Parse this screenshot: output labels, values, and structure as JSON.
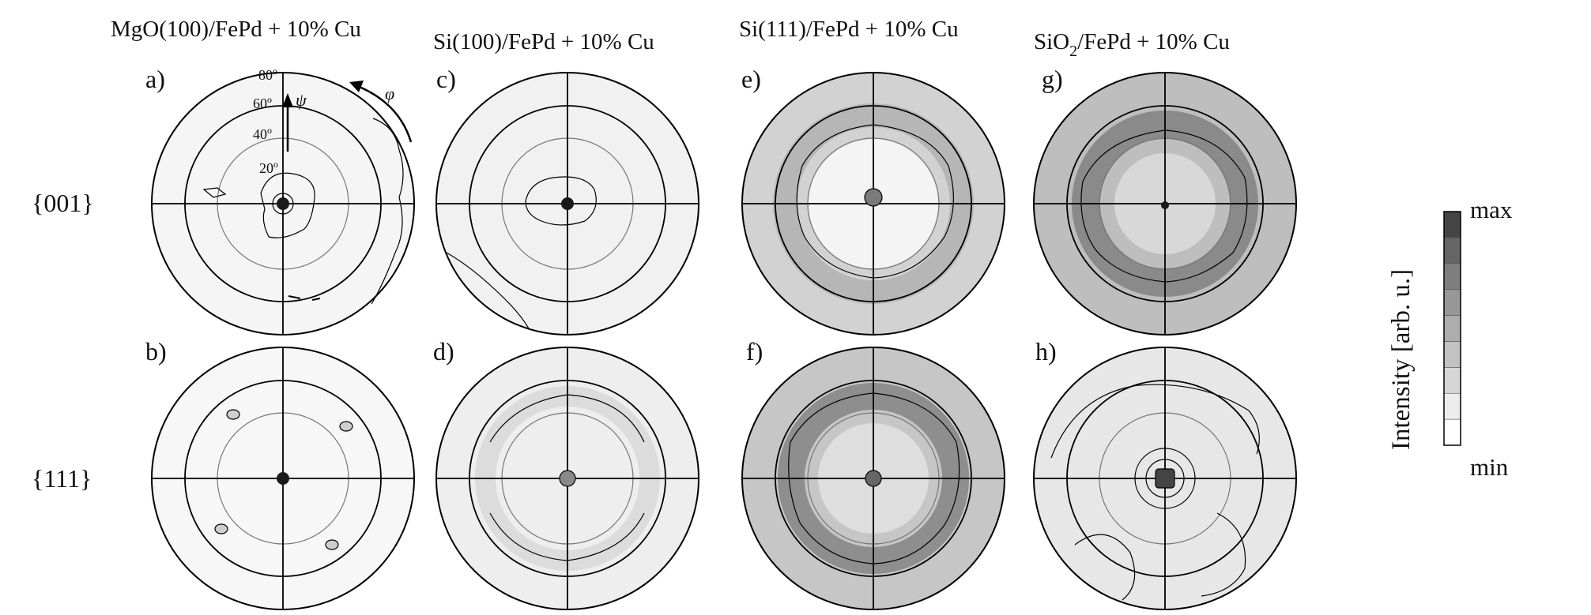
{
  "columns": [
    {
      "title_pre": "MgO(100)/FePd + 10% Cu",
      "title_sub": "",
      "title_post": ""
    },
    {
      "title_pre": "Si(100)/FePd + 10% Cu",
      "title_sub": "",
      "title_post": ""
    },
    {
      "title_pre": "Si(111)/FePd + 10% Cu",
      "title_sub": "",
      "title_post": ""
    },
    {
      "title_pre": "SiO",
      "title_sub": "2",
      "title_post": "/FePd + 10% Cu"
    }
  ],
  "rows": [
    {
      "label": "{001}"
    },
    {
      "label": "{111}"
    }
  ],
  "panels": [
    {
      "letter": "a)",
      "col": 0,
      "row": 0,
      "fill": "#f5f5f5"
    },
    {
      "letter": "b)",
      "col": 0,
      "row": 1,
      "fill": "#f7f7f7"
    },
    {
      "letter": "c)",
      "col": 1,
      "row": 0,
      "fill": "#f1f1f1"
    },
    {
      "letter": "d)",
      "col": 1,
      "row": 1,
      "fill": "#eeeeee"
    },
    {
      "letter": "e)",
      "col": 2,
      "row": 0,
      "fill": "#d2d2d2"
    },
    {
      "letter": "f)",
      "col": 2,
      "row": 1,
      "fill": "#c6c6c6"
    },
    {
      "letter": "g)",
      "col": 3,
      "row": 0,
      "fill": "#bebebe"
    },
    {
      "letter": "h)",
      "col": 3,
      "row": 1,
      "fill": "#e7e7e7"
    }
  ],
  "axes_annotation": {
    "psi_ticks": [
      "20",
      "40",
      "60",
      "80"
    ],
    "degree_symbol": "o",
    "psi_symbol": "ψ",
    "phi_symbol": "φ"
  },
  "colorbar": {
    "label": "Intensity [arb. u.]",
    "max_label": "max",
    "min_label": "min",
    "levels": [
      "#ffffff",
      "#ececec",
      "#d6d6d6",
      "#c2c2c2",
      "#adadad",
      "#979797",
      "#7e7e7e",
      "#656565",
      "#444444"
    ]
  }
}
